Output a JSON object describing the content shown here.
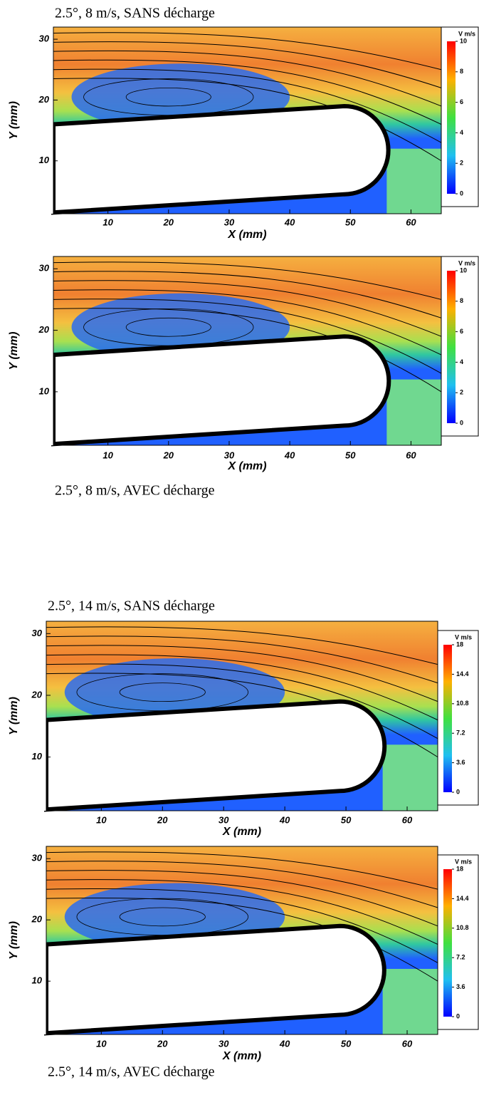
{
  "chart_data": [
    {
      "type": "contour",
      "caption": "2.5°, 8 m/s, SANS décharge",
      "xlabel": "X (mm)",
      "ylabel": "Y (mm)",
      "xlim": [
        1,
        65
      ],
      "ylim": [
        1.3,
        32
      ],
      "xticks": [
        10,
        20,
        30,
        40,
        50,
        60
      ],
      "yticks": [
        10,
        20,
        30
      ],
      "colorbar_label": "V m/s",
      "clim": [
        0,
        10
      ],
      "cticks": [
        0,
        2,
        4,
        6,
        8,
        10
      ]
    },
    {
      "type": "contour",
      "caption": "2.5°, 8 m/s, AVEC décharge",
      "xlabel": "X (mm)",
      "ylabel": "Y (mm)",
      "xlim": [
        1,
        65
      ],
      "ylim": [
        1.3,
        32
      ],
      "xticks": [
        10,
        20,
        30,
        40,
        50,
        60
      ],
      "yticks": [
        10,
        20,
        30
      ],
      "colorbar_label": "V m/s",
      "clim": [
        0,
        10
      ],
      "cticks": [
        0,
        2,
        4,
        6,
        8,
        10
      ]
    },
    {
      "type": "contour",
      "caption": "2.5°, 14 m/s, SANS décharge",
      "xlabel": "X (mm)",
      "ylabel": "Y (mm)",
      "xlim": [
        1,
        65
      ],
      "ylim": [
        1.3,
        32
      ],
      "xticks": [
        10,
        20,
        30,
        40,
        50,
        60
      ],
      "yticks": [
        10,
        20,
        30
      ],
      "colorbar_label": "V m/s",
      "clim": [
        0,
        18
      ],
      "cticks": [
        0,
        3.6,
        7.2,
        10.8,
        14.4,
        18
      ]
    },
    {
      "type": "contour",
      "caption": "2.5°, 14 m/s, AVEC décharge",
      "xlabel": "X (mm)",
      "ylabel": "Y (mm)",
      "xlim": [
        1,
        65
      ],
      "ylim": [
        1.3,
        32
      ],
      "xticks": [
        10,
        20,
        30,
        40,
        50,
        60
      ],
      "yticks": [
        10,
        20,
        30
      ],
      "colorbar_label": "V m/s",
      "clim": [
        0,
        18
      ],
      "cticks": [
        0,
        3.6,
        7.2,
        10.8,
        14.4,
        18
      ]
    }
  ]
}
